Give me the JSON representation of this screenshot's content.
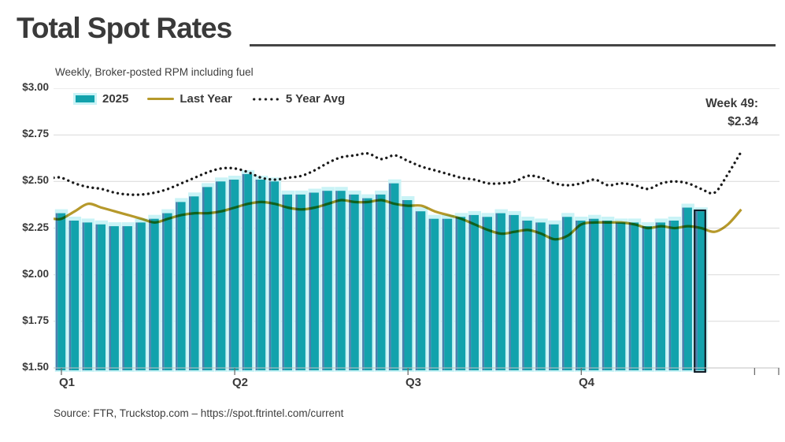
{
  "header": {
    "title": "Total Spot Rates",
    "subtitle": "Weekly, Broker-posted RPM including fuel"
  },
  "legend": {
    "items": [
      {
        "label": "2025",
        "swatch": "bar-swatch"
      },
      {
        "label": "Last Year",
        "swatch": "line-swatch"
      },
      {
        "label": "5 Year Avg",
        "swatch": "dotted-swatch"
      }
    ]
  },
  "annotation": {
    "line1": "Week 49:",
    "line2": "$2.34"
  },
  "footer": {
    "source": "Source: FTR, Truckstop.com – https://spot.ftrintel.com/current"
  },
  "colors": {
    "teal_bar": "#12a2ac",
    "bar_backdrop": "#c9f3f6",
    "bar_shadow_stripe": "#4d7fad",
    "highlight_outline": "#101c26",
    "last_year_line": "#b6992b",
    "five_year_avg_line": "#1a1a1a",
    "gridline": "#d9d9d9",
    "axis_line": "#c2c2c2",
    "tick": "#6e6e6e",
    "text": "#3d3d3d"
  },
  "chart_data": {
    "type": "bar",
    "title": "Total Spot Rates",
    "subtitle": "Weekly, Broker-posted RPM including fuel",
    "x_unit": "week",
    "weeks_shown": 49,
    "quarter_labels": [
      "Q1",
      "Q2",
      "Q3",
      "Q4"
    ],
    "ylim": [
      1.5,
      3.0
    ],
    "grid": true,
    "legend_position": "top-left-inside",
    "y_ticks": [
      {
        "label": "$3.00",
        "value": 3.0
      },
      {
        "label": "$2.75",
        "value": 2.75
      },
      {
        "label": "$2.50",
        "value": 2.5
      },
      {
        "label": "$2.25",
        "value": 2.25
      },
      {
        "label": "$2.00",
        "value": 2.0
      },
      {
        "label": "$1.75",
        "value": 1.75
      },
      {
        "label": "$1.50",
        "value": 1.5
      }
    ],
    "highlight": {
      "week_index": 49,
      "value": 2.34,
      "label": "Week 49: $2.34"
    },
    "series": [
      {
        "name": "2025",
        "type": "bar",
        "color": "#12a2ac",
        "values": [
          2.33,
          2.29,
          2.28,
          2.27,
          2.26,
          2.26,
          2.28,
          2.3,
          2.33,
          2.39,
          2.42,
          2.47,
          2.5,
          2.51,
          2.54,
          2.51,
          2.5,
          2.43,
          2.43,
          2.44,
          2.45,
          2.45,
          2.43,
          2.41,
          2.43,
          2.49,
          2.4,
          2.34,
          2.3,
          2.3,
          2.31,
          2.32,
          2.31,
          2.33,
          2.32,
          2.29,
          2.28,
          2.27,
          2.31,
          2.29,
          2.3,
          2.29,
          2.28,
          2.28,
          2.26,
          2.28,
          2.29,
          2.36,
          2.34
        ]
      },
      {
        "name": "Last Year",
        "type": "line",
        "color": "#b6992b",
        "values": [
          2.3,
          2.34,
          2.38,
          2.36,
          2.34,
          2.32,
          2.3,
          2.28,
          2.3,
          2.32,
          2.33,
          2.33,
          2.34,
          2.36,
          2.38,
          2.39,
          2.38,
          2.36,
          2.35,
          2.36,
          2.38,
          2.4,
          2.39,
          2.39,
          2.4,
          2.38,
          2.37,
          2.37,
          2.34,
          2.32,
          2.3,
          2.27,
          2.24,
          2.22,
          2.23,
          2.24,
          2.22,
          2.19,
          2.21,
          2.27,
          2.28,
          2.28,
          2.28,
          2.27,
          2.25,
          2.26,
          2.25,
          2.26,
          2.25,
          2.23,
          2.27,
          2.35
        ]
      },
      {
        "name": "5 Year Avg",
        "type": "dotted-line",
        "color": "#1a1a1a",
        "values": [
          2.52,
          2.49,
          2.47,
          2.46,
          2.44,
          2.43,
          2.43,
          2.44,
          2.46,
          2.49,
          2.52,
          2.55,
          2.57,
          2.57,
          2.55,
          2.52,
          2.51,
          2.52,
          2.53,
          2.56,
          2.6,
          2.63,
          2.64,
          2.65,
          2.62,
          2.64,
          2.61,
          2.58,
          2.56,
          2.54,
          2.52,
          2.51,
          2.49,
          2.49,
          2.5,
          2.53,
          2.52,
          2.49,
          2.48,
          2.49,
          2.51,
          2.48,
          2.49,
          2.48,
          2.46,
          2.49,
          2.5,
          2.49,
          2.46,
          2.44,
          2.54,
          2.66
        ]
      }
    ]
  }
}
